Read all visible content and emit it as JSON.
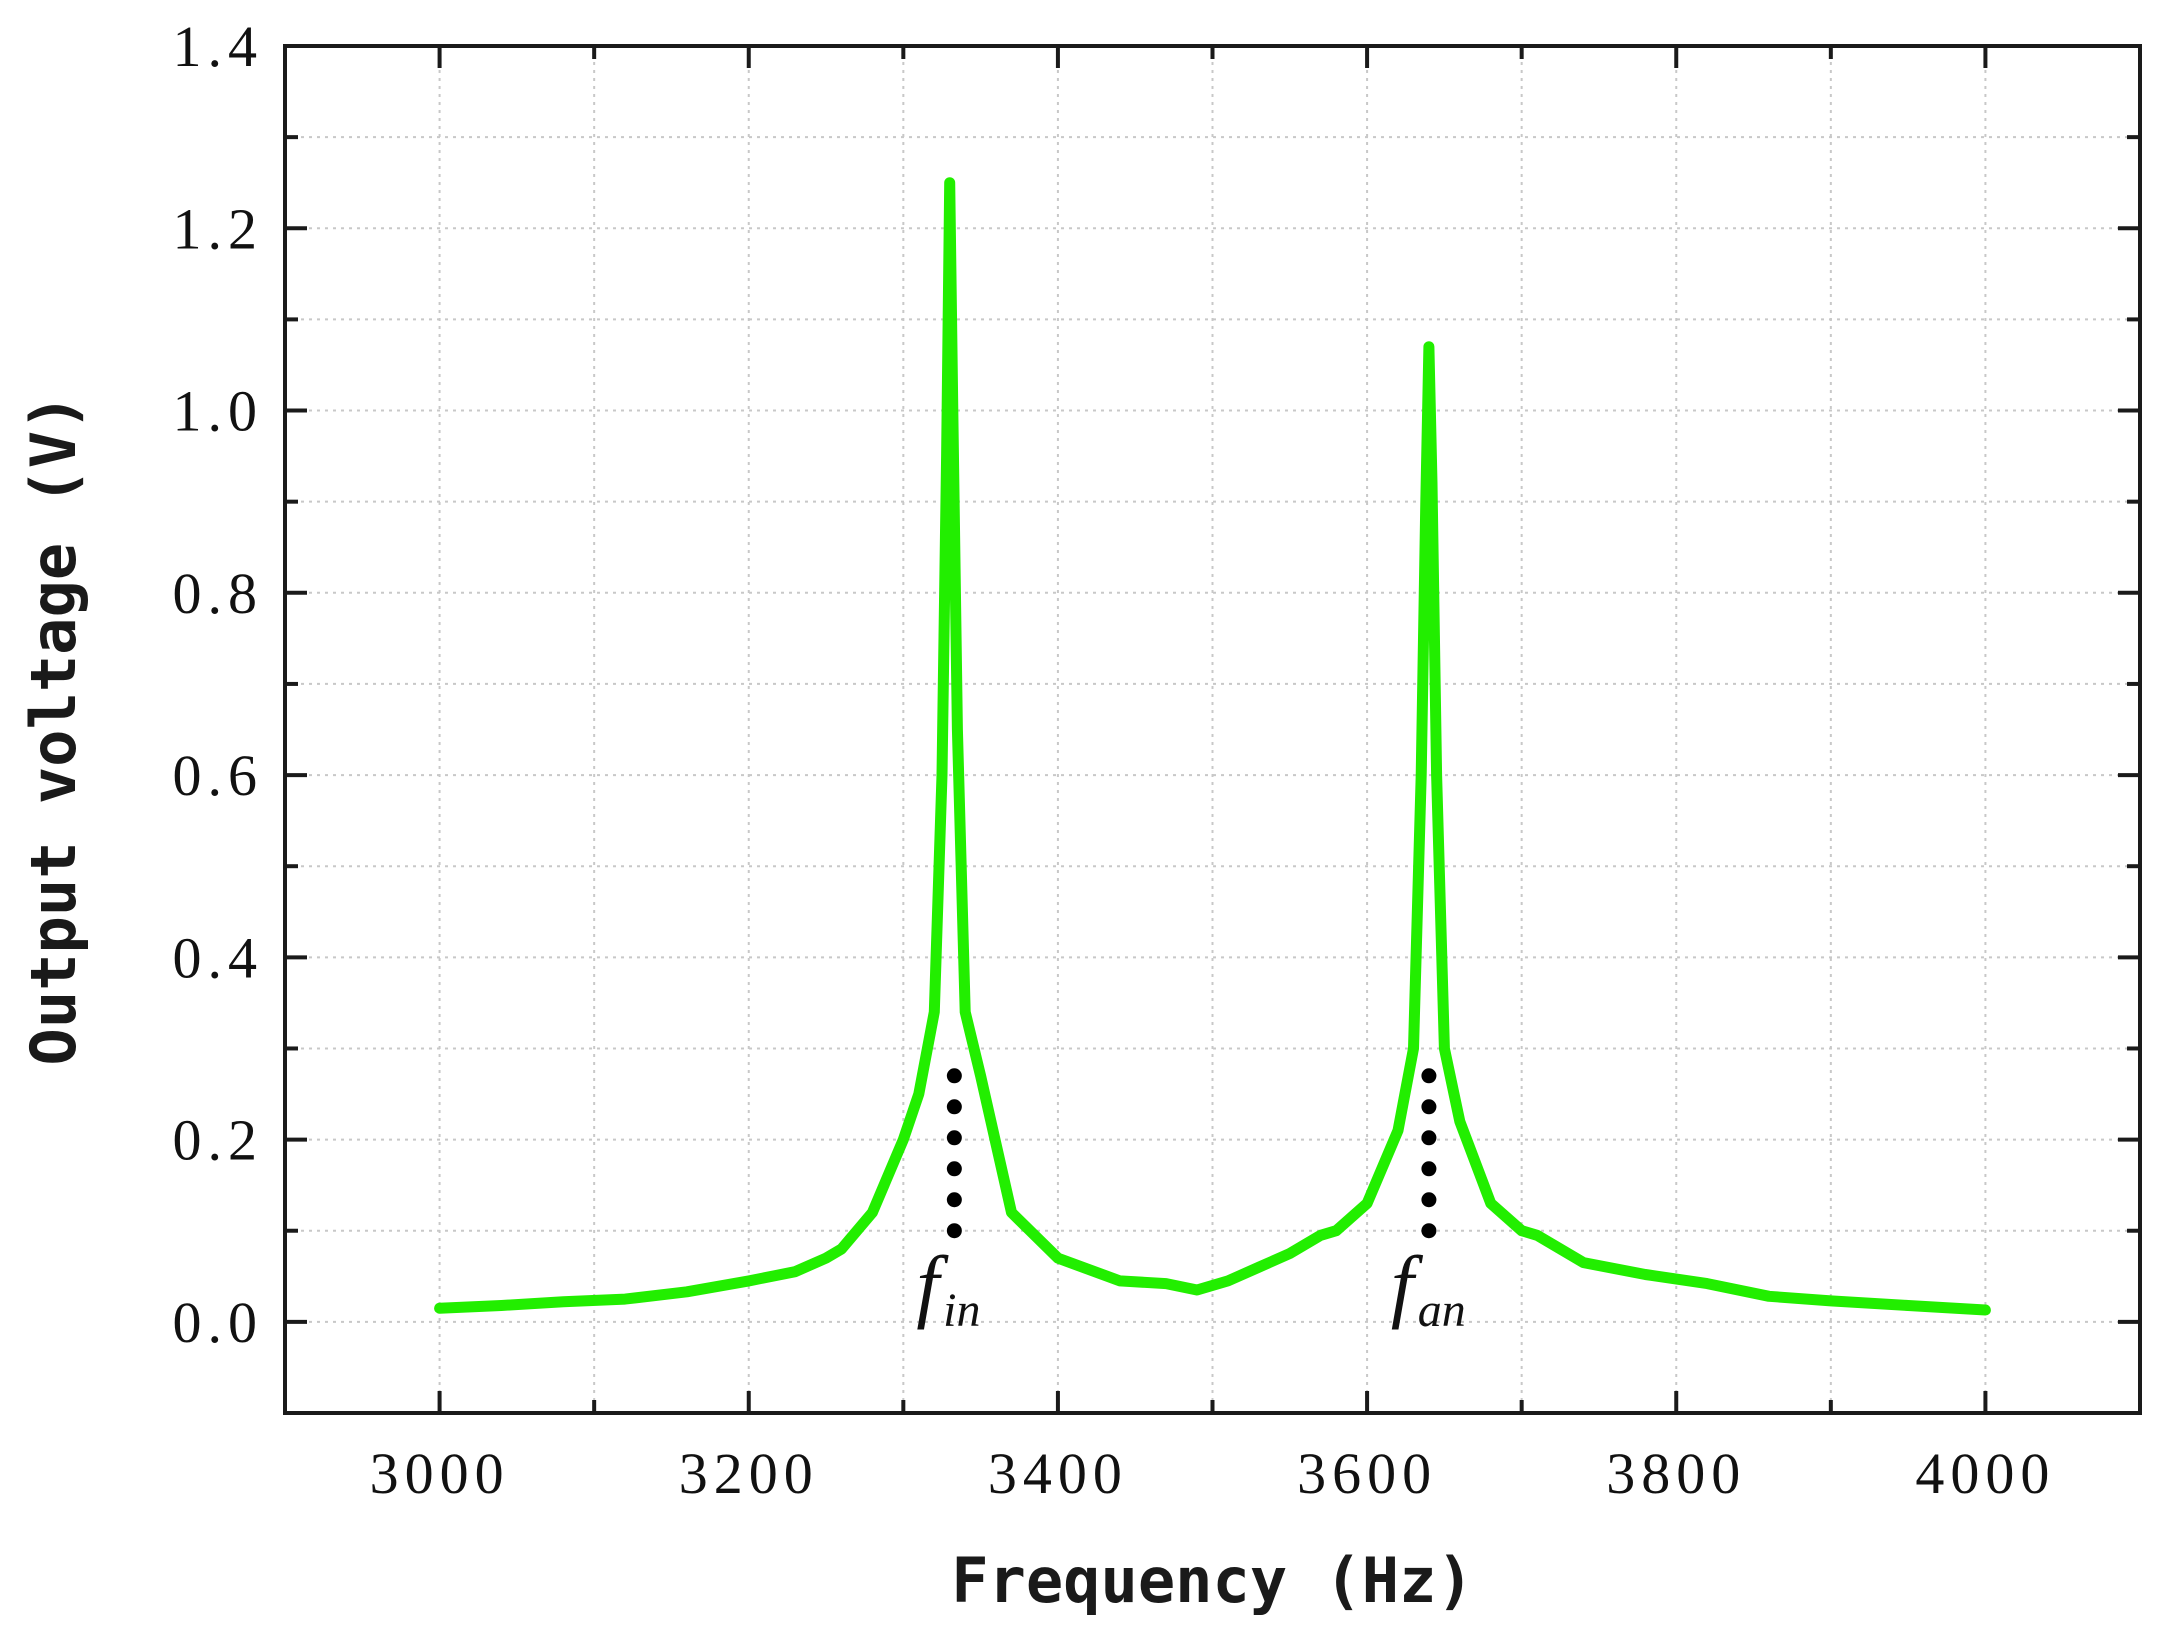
{
  "chart_data": {
    "type": "line",
    "xlabel": "Frequency (Hz)",
    "ylabel": "Output voltage (V)",
    "xlim": [
      2900,
      4100
    ],
    "ylim": [
      -0.1,
      1.4
    ],
    "xticks": [
      3000,
      3200,
      3400,
      3600,
      3800,
      4000
    ],
    "xtick_labels": [
      "3000",
      "3200",
      "3400",
      "3600",
      "3800",
      "4000"
    ],
    "yticks": [
      0.0,
      0.2,
      0.4,
      0.6,
      0.8,
      1.0,
      1.2,
      1.4
    ],
    "ytick_labels": [
      "0.0",
      "0.2",
      "0.4",
      "0.6",
      "0.8",
      "1.0",
      "1.2",
      "1.4"
    ],
    "grid": true,
    "line_color": "#22ee00",
    "series": [
      {
        "x": [
          3000,
          3040,
          3080,
          3120,
          3160,
          3200,
          3230,
          3250,
          3260,
          3280,
          3300,
          3310,
          3320,
          3325,
          3328,
          3330,
          3332,
          3335,
          3340,
          3350,
          3370,
          3400,
          3440,
          3470,
          3490,
          3510,
          3530,
          3550,
          3570,
          3580,
          3600,
          3620,
          3630,
          3635,
          3638,
          3640,
          3642,
          3645,
          3650,
          3660,
          3680,
          3700,
          3710,
          3740,
          3780,
          3820,
          3860,
          3900,
          3950,
          4000
        ],
        "y": [
          0.015,
          0.018,
          0.022,
          0.025,
          0.033,
          0.045,
          0.055,
          0.07,
          0.08,
          0.12,
          0.2,
          0.25,
          0.34,
          0.6,
          0.95,
          1.25,
          1.0,
          0.65,
          0.34,
          0.27,
          0.12,
          0.07,
          0.045,
          0.042,
          0.035,
          0.045,
          0.06,
          0.075,
          0.095,
          0.1,
          0.13,
          0.21,
          0.3,
          0.6,
          0.9,
          1.07,
          0.92,
          0.6,
          0.3,
          0.22,
          0.13,
          0.1,
          0.095,
          0.065,
          0.052,
          0.042,
          0.028,
          0.023,
          0.018,
          0.013
        ]
      }
    ],
    "annotations": [
      {
        "main": "f",
        "sub": "in",
        "x": 3333,
        "y_top": 0.27,
        "y_bottom": 0.1
      },
      {
        "main": "f",
        "sub": "an",
        "x": 3640,
        "y_top": 0.27,
        "y_bottom": 0.1
      }
    ]
  }
}
